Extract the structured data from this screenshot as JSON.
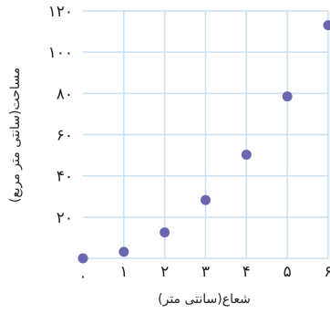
{
  "chart_data": {
    "type": "scatter",
    "xlabel": "شعاع(سانتی متر)",
    "ylabel": "مساحت(سانتی متر مربع)",
    "x_ticks": [
      "۰",
      "۱",
      "۲",
      "۳",
      "۴",
      "۵",
      "۶"
    ],
    "y_ticks": [
      "۲۰",
      "۴۰",
      "۶۰",
      "۸۰",
      "۱۰۰",
      "۱۲۰"
    ],
    "xlim": [
      0,
      6
    ],
    "ylim": [
      0,
      120
    ],
    "grid": true,
    "colors": {
      "point": "#6b66b0",
      "grid": "#c6e1f5"
    },
    "points": [
      {
        "x": 0,
        "y": 0
      },
      {
        "x": 1,
        "y": 3.14
      },
      {
        "x": 2,
        "y": 12.57
      },
      {
        "x": 3,
        "y": 28.27
      },
      {
        "x": 4,
        "y": 50.27
      },
      {
        "x": 5,
        "y": 78.54
      },
      {
        "x": 6,
        "y": 113.1
      }
    ]
  }
}
